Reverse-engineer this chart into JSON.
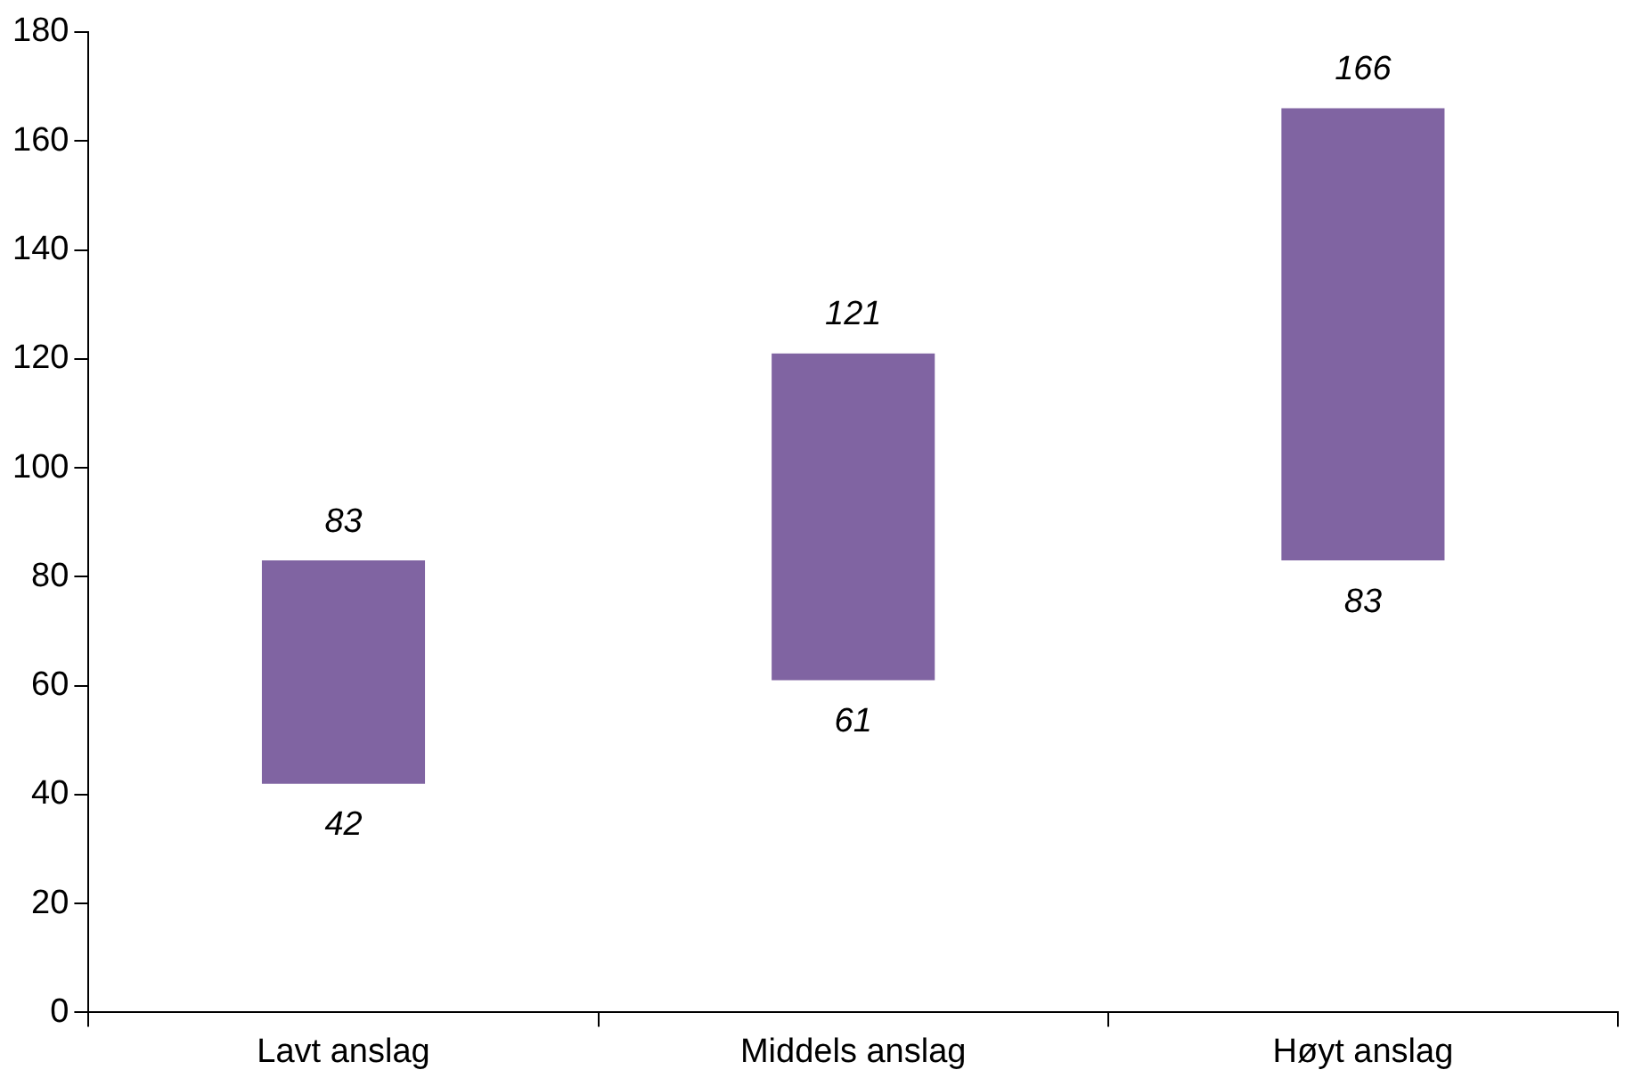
{
  "chart_data": {
    "type": "bar",
    "categories": [
      "Lavt anslag",
      "Middels anslag",
      "Høyt anslag"
    ],
    "values": [
      41,
      60,
      83
    ],
    "base": [
      42,
      61,
      83
    ],
    "color": "#8064a2",
    "ylim": [
      0,
      180
    ],
    "yticks": [
      0,
      20,
      40,
      60,
      80,
      100,
      120,
      140,
      160,
      180
    ],
    "grid": false,
    "legend": false,
    "annotations": [
      {
        "text": "83",
        "x": "Lavt anslag",
        "y": 83
      },
      {
        "text": "42",
        "x": "Lavt anslag",
        "y": 42
      },
      {
        "text": "121",
        "x": "Middels anslag",
        "y": 121
      },
      {
        "text": "61",
        "x": "Middels anslag",
        "y": 61
      },
      {
        "text": "166",
        "x": "Høyt anslag",
        "y": 166
      },
      {
        "text": "83",
        "x": "Høyt anslag",
        "y": 83
      }
    ]
  }
}
